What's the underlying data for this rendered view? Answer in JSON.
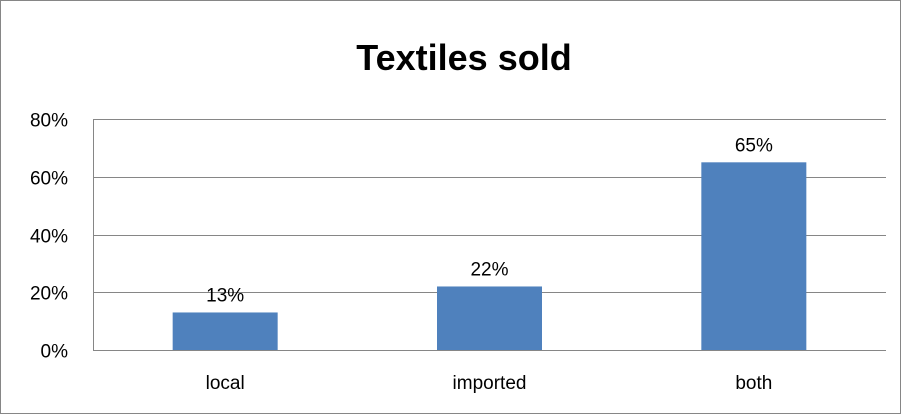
{
  "chart_data": {
    "type": "bar",
    "title": "Textiles sold",
    "xlabel": "",
    "ylabel": "",
    "categories": [
      "local",
      "imported",
      "both"
    ],
    "values": [
      13,
      22,
      65
    ],
    "data_labels": [
      "13%",
      "22%",
      "65%"
    ],
    "ylim": [
      0,
      80
    ],
    "yticks": [
      0,
      20,
      40,
      60,
      80
    ],
    "ytick_labels": [
      "0%",
      "20%",
      "40%",
      "60%",
      "80%"
    ],
    "grid": true,
    "legend": "none",
    "colors": {
      "bar": "#4f81bd",
      "grid": "#868686",
      "frame": "#868686",
      "text": "#000000"
    }
  }
}
